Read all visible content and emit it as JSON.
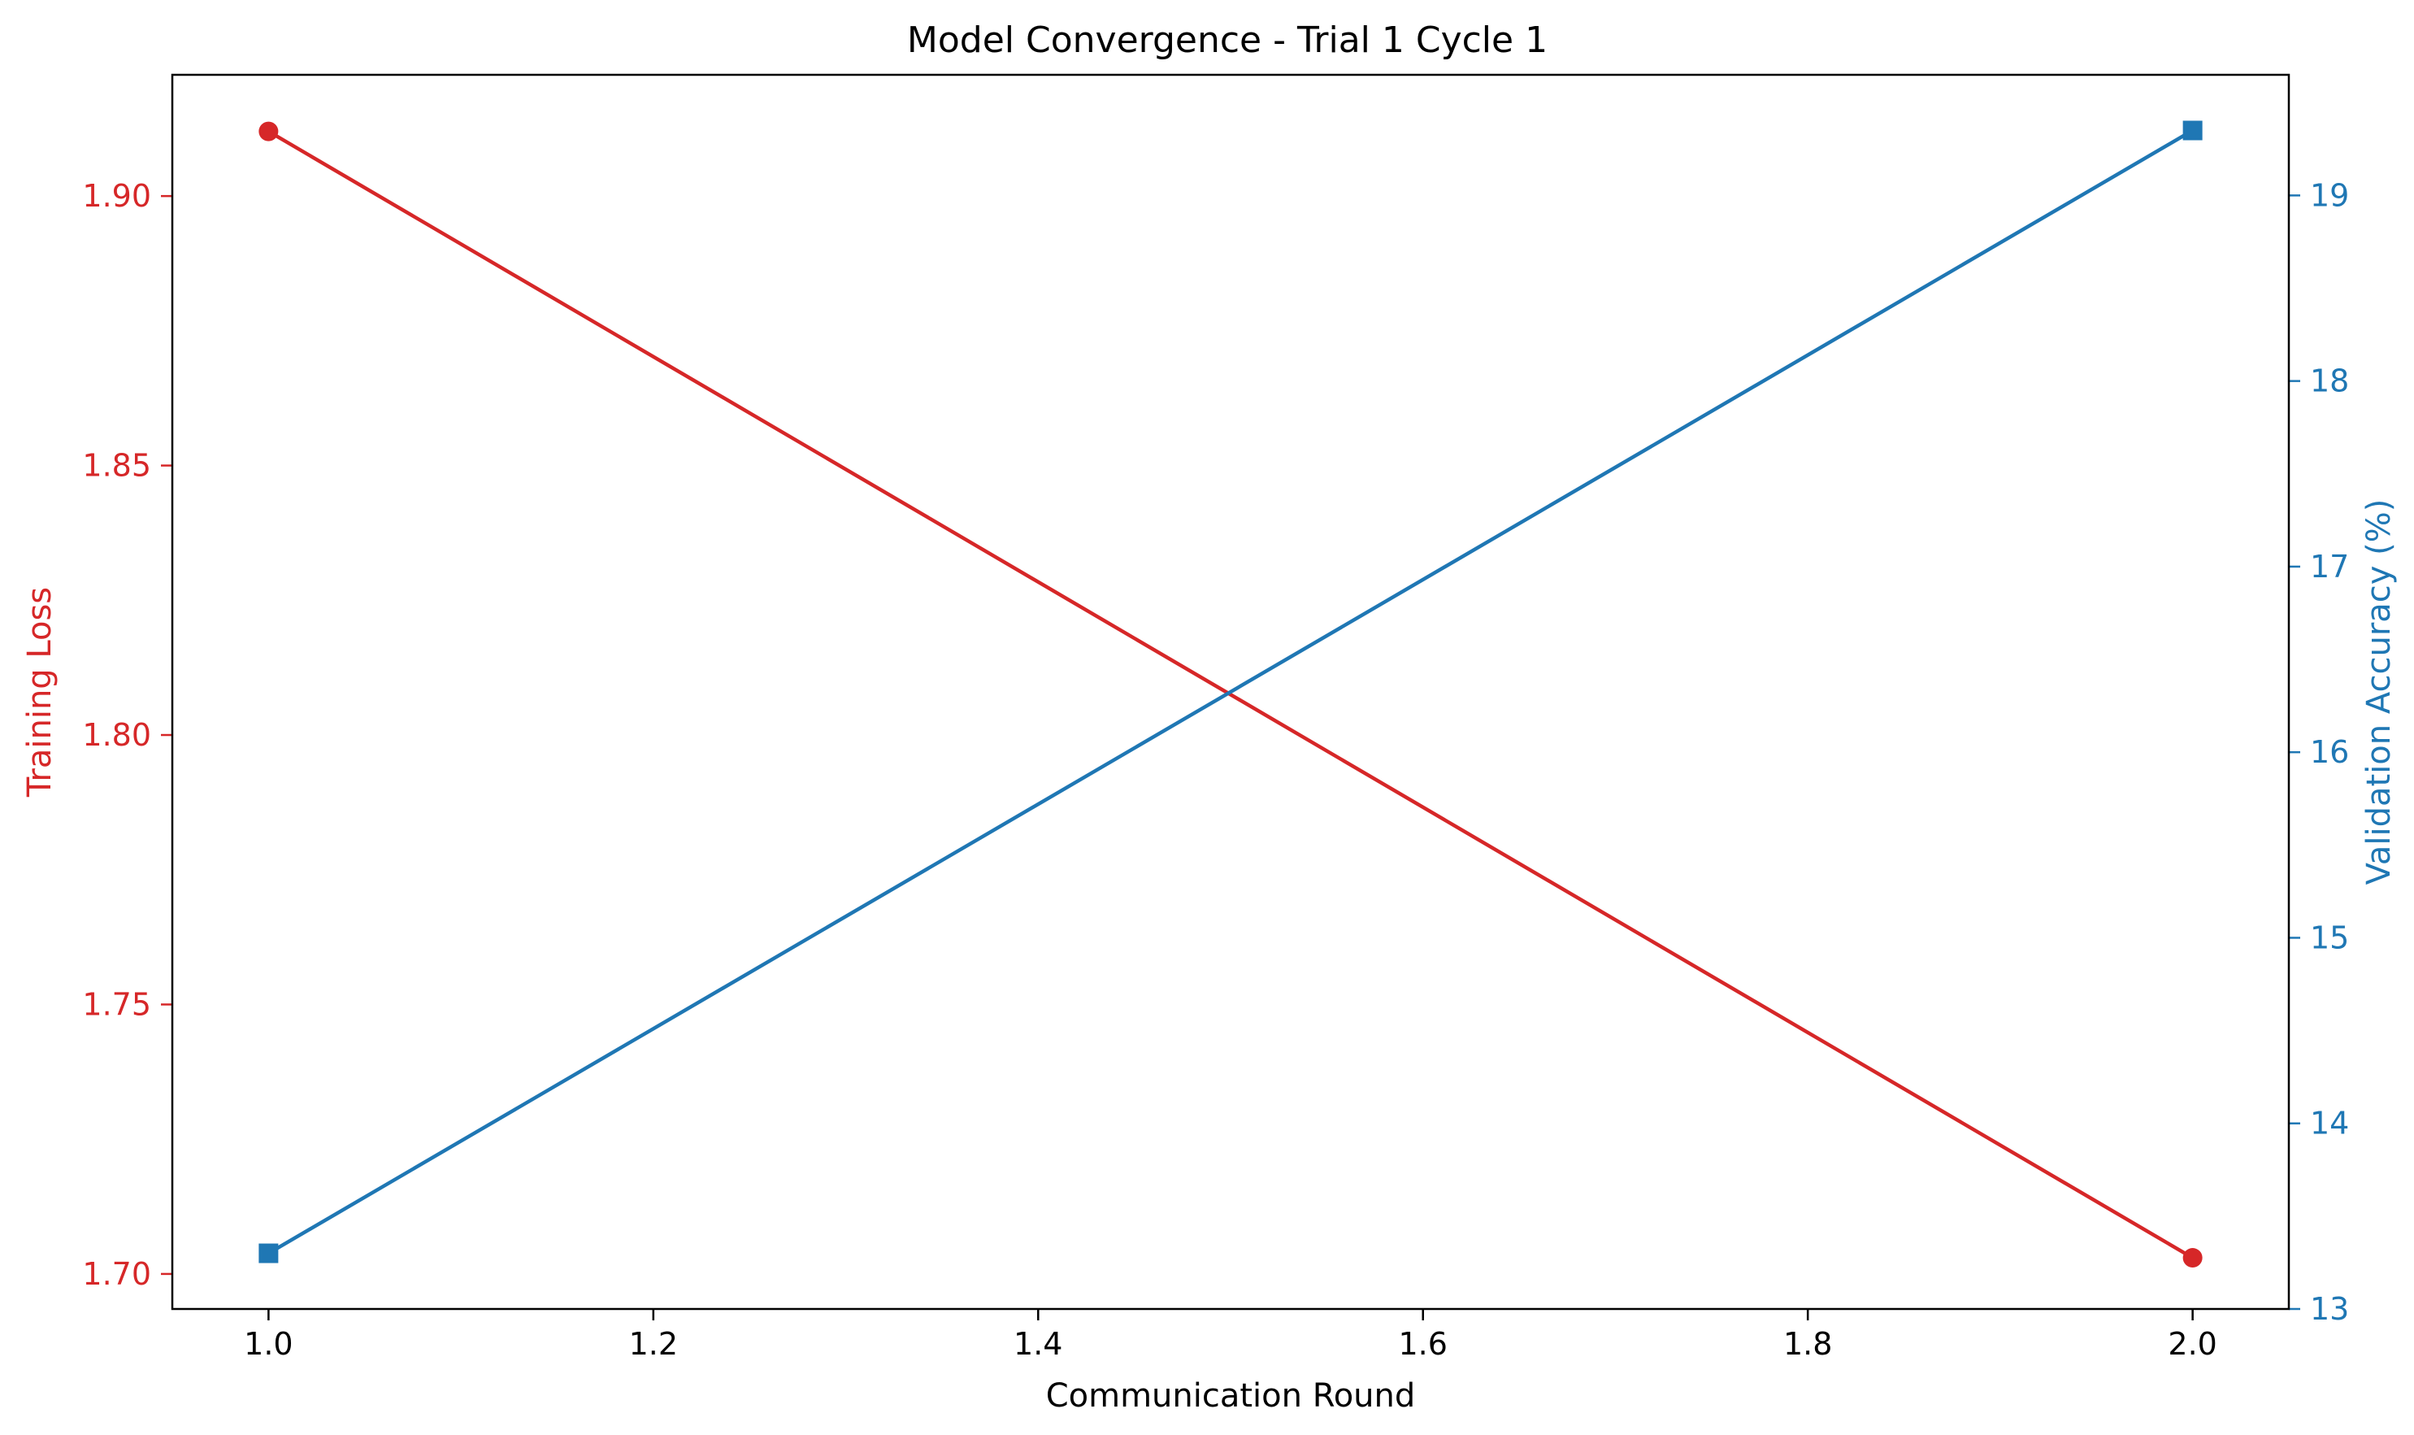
{
  "chart_data": {
    "type": "line",
    "title": "Model Convergence - Trial 1 Cycle 1",
    "xlabel": "Communication Round",
    "ylabel_left": "Training Loss",
    "ylabel_right": "Validation Accuracy (%)",
    "x": [
      1.0,
      2.0
    ],
    "xlim": [
      0.95,
      2.05
    ],
    "xticks": [
      "1.0",
      "1.2",
      "1.4",
      "1.6",
      "1.8",
      "2.0"
    ],
    "ylim_left": [
      1.6935,
      1.9225
    ],
    "yticks_left": [
      "1.70",
      "1.75",
      "1.80",
      "1.85",
      "1.90"
    ],
    "ylim_right": [
      13.0,
      19.65
    ],
    "yticks_right": [
      "13",
      "14",
      "15",
      "16",
      "17",
      "18",
      "19"
    ],
    "grid": false,
    "series": [
      {
        "name": "Training Loss",
        "axis": "left",
        "values": [
          1.912,
          1.703
        ],
        "color": "#d62728",
        "marker": "circle"
      },
      {
        "name": "Validation Accuracy (%)",
        "axis": "right",
        "values": [
          13.3,
          19.35
        ],
        "color": "#1f77b4",
        "marker": "square"
      }
    ]
  }
}
